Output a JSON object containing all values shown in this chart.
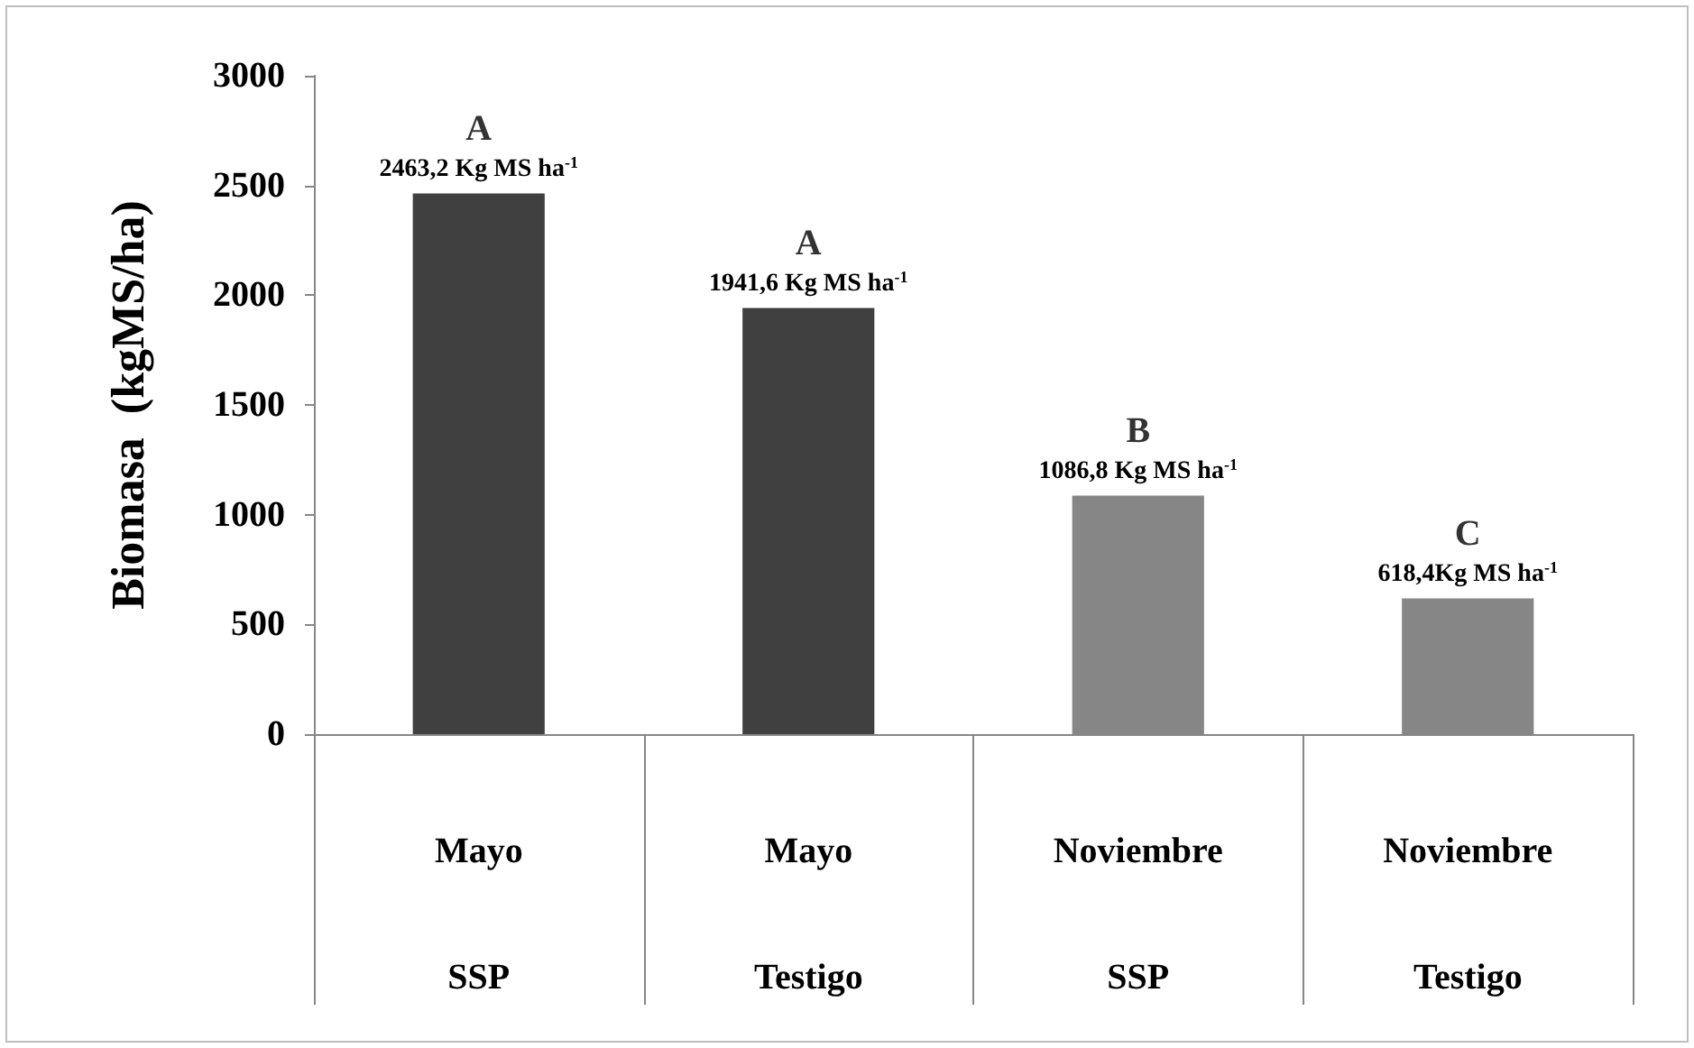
{
  "chart_data": {
    "type": "bar",
    "ylabel": "Biomasa  (kgMS/ha)",
    "categories": [
      "Mayo\nSSP",
      "Mayo\nTestigo",
      "Noviembre\nSSP",
      "Noviembre\nTestigo"
    ],
    "values": [
      2463.2,
      1941.6,
      1086.8,
      618.4
    ],
    "colors": [
      "#404040",
      "#404040",
      "#868686",
      "#868686"
    ],
    "value_labels": [
      "2463,2 Kg MS ha$^{-1}$",
      "1941,6 Kg MS ha$^{-1}$",
      "1086,8 Kg MS ha$^{-1}$",
      "618,4Kg MS ha$^{-1}$"
    ],
    "annotations": [
      {
        "text": "A",
        "x": "Mayo\nSSP",
        "y": 2463.2
      },
      {
        "text": "A",
        "x": "Mayo\nTestigo",
        "y": 1941.6
      },
      {
        "text": "B",
        "x": "Noviembre\nSSP",
        "y": 1086.8
      },
      {
        "text": "C",
        "x": "Noviembre\nTestigo",
        "y": 618.4
      }
    ],
    "ylim": [
      0,
      3000
    ],
    "yticks": [
      0,
      500,
      1000,
      1500,
      2000,
      2500,
      3000
    ],
    "grid": false
  }
}
